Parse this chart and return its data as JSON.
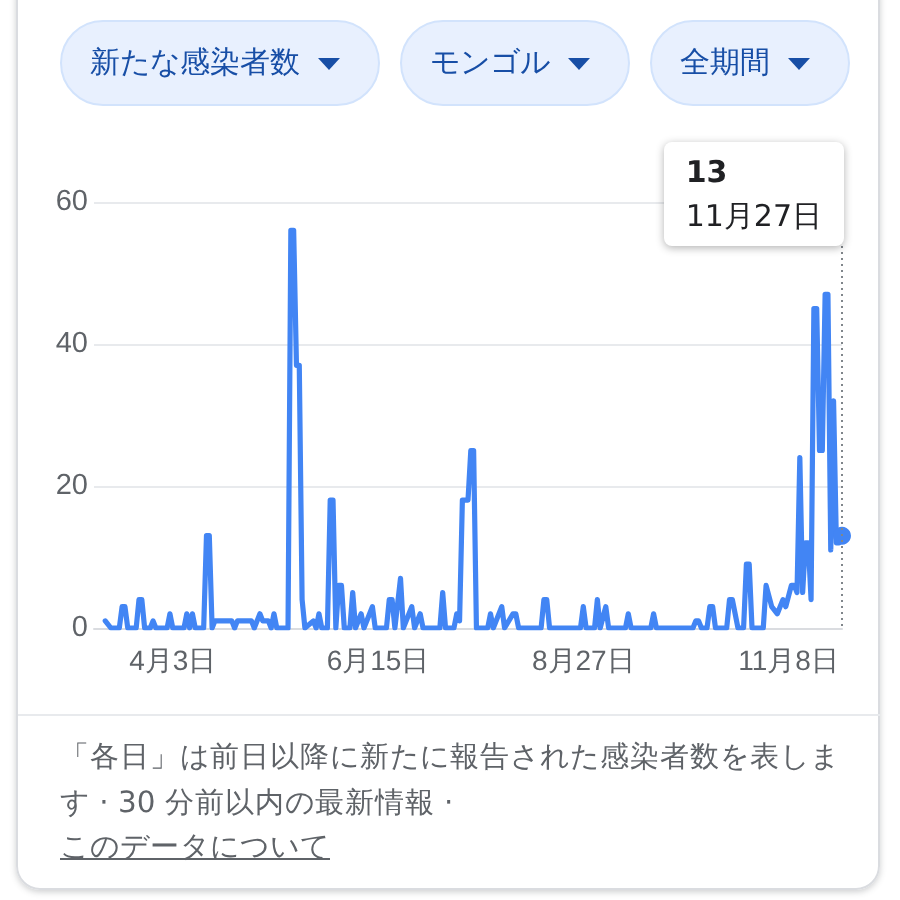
{
  "chart_data": {
    "type": "line",
    "annotations": [
      "新たな感染者数",
      "モンゴル",
      "全期間",
      "13\n11月27日",
      "「各日」は前日以降に新たに報告された感染者数を表します · 30 分前以内の最新情報 ·",
      "このデータについて"
    ],
    "x": [
      "--03-10",
      "--03-12",
      "--03-15",
      "--03-16",
      "--03-17",
      "--03-18",
      "--03-21",
      "--03-22",
      "--03-23",
      "--03-24",
      "--03-26",
      "--03-27",
      "--03-28",
      "--04-01",
      "--04-02",
      "--04-03",
      "--04-07",
      "--04-08",
      "--04-09",
      "--04-10",
      "--04-11",
      "--04-14",
      "--04-15",
      "--04-16",
      "--04-17",
      "--04-18",
      "--04-24",
      "--04-25",
      "--04-26",
      "--05-01",
      "--05-02",
      "--05-04",
      "--05-05",
      "--05-07",
      "--05-08",
      "--05-09",
      "--05-10",
      "--05-14",
      "--05-15",
      "--05-16",
      "--05-17",
      "--05-18",
      "--05-19",
      "--05-20",
      "--05-23",
      "--05-24",
      "--05-25",
      "--05-26",
      "--05-28",
      "--05-29",
      "--05-30",
      "--05-31",
      "--06-01",
      "--06-02",
      "--06-03",
      "--06-05",
      "--06-06",
      "--06-07",
      "--06-09",
      "--06-10",
      "--06-13",
      "--06-14",
      "--06-18",
      "--06-19",
      "--06-20",
      "--06-21",
      "--06-23",
      "--06-24",
      "--06-27",
      "--06-28",
      "--06-30",
      "--07-01",
      "--07-07",
      "--07-08",
      "--07-09",
      "--07-12",
      "--07-13",
      "--07-14",
      "--07-15",
      "--07-17",
      "--07-18",
      "--07-19",
      "--07-20",
      "--07-24",
      "--07-25",
      "--07-26",
      "--07-29",
      "--07-30",
      "--08-02",
      "--08-03",
      "--08-04",
      "--08-12",
      "--08-13",
      "--08-14",
      "--08-15",
      "--08-26",
      "--08-27",
      "--08-28",
      "--08-31",
      "--09-01",
      "--09-02",
      "--09-04",
      "--09-05",
      "--09-11",
      "--09-12",
      "--09-13",
      "--09-20",
      "--09-21",
      "--09-22",
      "--10-05",
      "--10-06",
      "--10-07",
      "--10-08",
      "--10-10",
      "--10-11",
      "--10-12",
      "--10-13",
      "--10-17",
      "--10-18",
      "--10-19",
      "--10-20",
      "--10-21",
      "--10-23",
      "--10-24",
      "--10-25",
      "--10-26",
      "--10-30",
      "--10-31",
      "--11-02",
      "--11-04",
      "--11-06",
      "--11-07",
      "--11-09",
      "--11-10",
      "--11-11",
      "--11-12",
      "--11-13",
      "--11-14",
      "--11-15",
      "--11-16",
      "--11-17",
      "--11-18",
      "--11-19",
      "--11-20",
      "--11-21",
      "--11-22",
      "--11-23",
      "--11-24",
      "--11-25",
      "--11-26",
      "--11-27"
    ],
    "series": [
      {
        "color": "#4285f4",
        "values": [
          1,
          0,
          0,
          3,
          3,
          0,
          0,
          4,
          4,
          0,
          0,
          1,
          0,
          0,
          2,
          0,
          0,
          2,
          0,
          2,
          0,
          0,
          13,
          13,
          0,
          1,
          1,
          0,
          1,
          1,
          0,
          2,
          1,
          1,
          0,
          2,
          0,
          0,
          56,
          56,
          37,
          37,
          4,
          0,
          1,
          0,
          2,
          0,
          0,
          18,
          18,
          0,
          6,
          6,
          0,
          0,
          5,
          0,
          2,
          0,
          3,
          0,
          0,
          4,
          4,
          0,
          7,
          0,
          3,
          0,
          2,
          0,
          0,
          5,
          0,
          0,
          2,
          1,
          18,
          18,
          25,
          25,
          0,
          0,
          2,
          0,
          3,
          0,
          2,
          2,
          0,
          0,
          4,
          4,
          0,
          0,
          3,
          0,
          0,
          4,
          0,
          3,
          0,
          0,
          2,
          0,
          0,
          2,
          0,
          0,
          1,
          1,
          0,
          0,
          3,
          3,
          0,
          0,
          4,
          4,
          2,
          0,
          0,
          9,
          9,
          0,
          0,
          6,
          3,
          2,
          4,
          3,
          6,
          6,
          5,
          24,
          5,
          12,
          12,
          4,
          45,
          45,
          25,
          25,
          47,
          47,
          11,
          32,
          12,
          12,
          13
        ]
      }
    ],
    "xlim": [
      "--03-06",
      "--11-27"
    ],
    "xticks": [
      {
        "value": "--04-03",
        "label": "4月3日"
      },
      {
        "value": "--06-15",
        "label": "6月15日"
      },
      {
        "value": "--08-27",
        "label": "8月27日"
      },
      {
        "value": "--11-08",
        "label": "11月8日"
      }
    ],
    "ylim": [
      0,
      60
    ],
    "yticks": [
      0,
      20,
      40,
      60
    ],
    "grid": "y",
    "marker": "none"
  }
}
